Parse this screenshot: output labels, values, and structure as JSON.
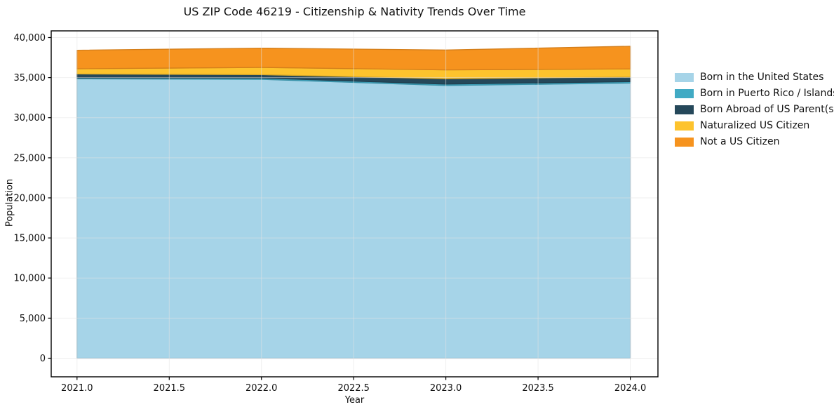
{
  "title": "US ZIP Code 46219 - Citizenship & Nativity Trends Over Time",
  "chart_data": {
    "type": "area",
    "stacked": true,
    "title": "US ZIP Code 46219 - Citizenship & Nativity Trends Over Time",
    "xlabel": "Year",
    "ylabel": "Population",
    "x": [
      2021,
      2022,
      2023,
      2024
    ],
    "series": [
      {
        "name": "Born in the United States",
        "color": "#A6D4E8",
        "values": [
          34850,
          34780,
          34020,
          34320
        ]
      },
      {
        "name": "Born in Puerto Rico / Islands",
        "color": "#41AAC4",
        "values": [
          120,
          170,
          170,
          180
        ]
      },
      {
        "name": "Born Abroad of US Parent(s)",
        "color": "#25485A",
        "values": [
          490,
          420,
          680,
          580
        ]
      },
      {
        "name": "Naturalized US Citizen",
        "color": "#FDC32D",
        "values": [
          640,
          900,
          1090,
          1010
        ]
      },
      {
        "name": "Not a US Citizen",
        "color": "#F6931E",
        "values": [
          2310,
          2410,
          2480,
          2820
        ]
      }
    ],
    "totals": [
      38410,
      38680,
      38440,
      38910
    ],
    "xlim": [
      2020.86,
      2024.15
    ],
    "ylim": [
      -2320,
      40830
    ],
    "xticks": {
      "values": [
        2021.0,
        2021.5,
        2022.0,
        2022.5,
        2023.0,
        2023.5,
        2024.0
      ],
      "labels": [
        "2021.0",
        "2021.5",
        "2022.0",
        "2022.5",
        "2023.0",
        "2023.5",
        "2024.0"
      ]
    },
    "yticks": {
      "values": [
        0,
        5000,
        10000,
        15000,
        20000,
        25000,
        30000,
        35000,
        40000
      ],
      "labels": [
        "0",
        "5,000",
        "10,000",
        "15,000",
        "20,000",
        "25,000",
        "30,000",
        "35,000",
        "40,000"
      ]
    },
    "grid": true,
    "grid_color": "#e3e3e3",
    "frame_color": "#000000",
    "legend_position": "right"
  }
}
